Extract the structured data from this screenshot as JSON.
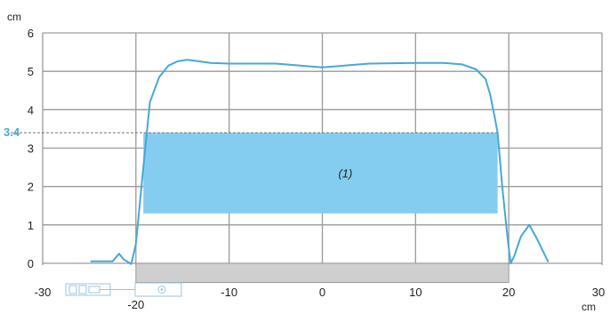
{
  "chart_data": {
    "type": "line",
    "x_unit": "cm",
    "y_unit": "cm",
    "xlim": [
      -30,
      30
    ],
    "ylim": [
      0,
      6
    ],
    "grid": true,
    "x_ticks": [
      -30,
      -20,
      -10,
      0,
      10,
      20,
      30
    ],
    "x_tick_labels": [
      "-30",
      "-20",
      "-10",
      "0",
      "10",
      "20",
      "30"
    ],
    "y_ticks": [
      0,
      1,
      2,
      3,
      4,
      5,
      6
    ],
    "y_tick_labels": [
      "0",
      "1",
      "2",
      "3",
      "4",
      "5",
      "6"
    ],
    "reference_line": {
      "y": 3.4,
      "label": "3.4",
      "color": "#4da9dd"
    },
    "band": {
      "x": [
        -19.2,
        18.8
      ],
      "y": [
        1.3,
        3.4
      ],
      "label": "(1)",
      "color": "#84cdf0"
    },
    "ground_bar": {
      "x": [
        -20,
        20
      ],
      "y": [
        -0.5,
        0
      ],
      "color": "#cfcfcf"
    },
    "series": [
      {
        "color": "#47a7d9",
        "x": [
          -24.8,
          -23.5,
          -22.5,
          -21.8,
          -21.3,
          -20.5,
          -20.0,
          -19.2,
          -18.5,
          -17.5,
          -16.5,
          -15.5,
          -14.5,
          -13.5,
          -12.0,
          -10.0,
          -5.0,
          0.0,
          5.0,
          10.0,
          13.0,
          15.0,
          16.5,
          17.5,
          18.0,
          18.5,
          18.8,
          19.3,
          19.9,
          20.2,
          20.6,
          21.3,
          22.2,
          23.0,
          24.2
        ],
        "y": [
          0.05,
          0.05,
          0.05,
          0.25,
          0.1,
          -0.02,
          0.5,
          2.5,
          4.2,
          4.85,
          5.15,
          5.26,
          5.3,
          5.27,
          5.22,
          5.2,
          5.2,
          5.1,
          5.2,
          5.22,
          5.22,
          5.18,
          5.05,
          4.8,
          4.4,
          3.8,
          3.4,
          2.0,
          0.6,
          0.0,
          0.2,
          0.7,
          1.0,
          0.65,
          0.05
        ]
      }
    ]
  },
  "icons": {
    "probe": "sensor-probe-icon"
  }
}
